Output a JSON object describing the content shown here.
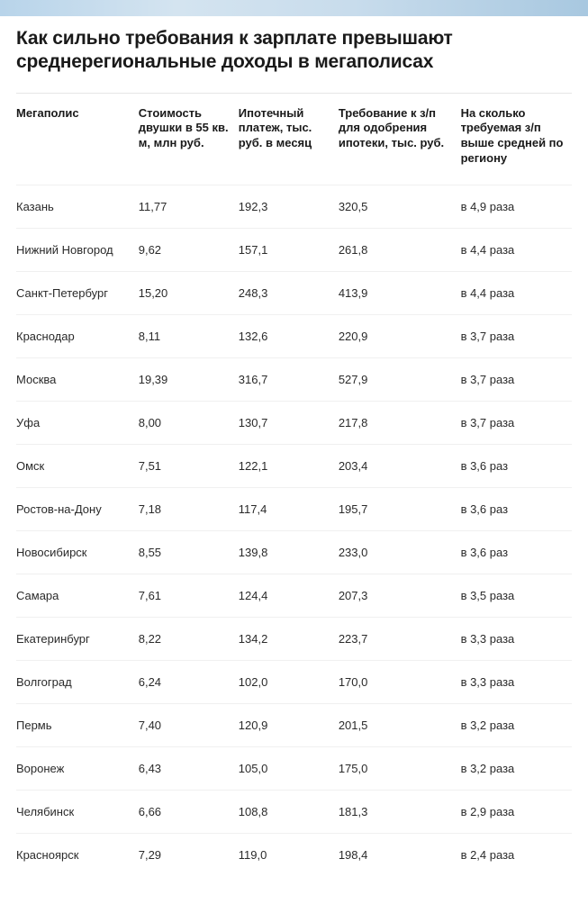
{
  "title": "Как сильно требования к зарплате превышают среднерегиональные доходы в мегаполисах",
  "table": {
    "columns": [
      "Мегаполис",
      "Стоимость двушки в 55 кв. м, млн руб.",
      "Ипотечный платеж, тыс. руб. в месяц",
      "Требование к з/п для одобрения ипотеки, тыс. руб.",
      "На сколько требуемая з/п выше средней по региону"
    ],
    "rows": [
      {
        "city": "Казань",
        "cost": "11,77",
        "payment": "192,3",
        "req": "320,5",
        "ratio": "в 4,9 раза"
      },
      {
        "city": "Нижний Новгород",
        "cost": "9,62",
        "payment": "157,1",
        "req": "261,8",
        "ratio": "в 4,4 раза"
      },
      {
        "city": "Санкт-Петербург",
        "cost": "15,20",
        "payment": "248,3",
        "req": "413,9",
        "ratio": "в 4,4 раза"
      },
      {
        "city": "Краснодар",
        "cost": "8,11",
        "payment": "132,6",
        "req": "220,9",
        "ratio": "в 3,7 раза"
      },
      {
        "city": "Москва",
        "cost": "19,39",
        "payment": "316,7",
        "req": "527,9",
        "ratio": "в 3,7 раза"
      },
      {
        "city": "Уфа",
        "cost": "8,00",
        "payment": "130,7",
        "req": "217,8",
        "ratio": "в 3,7 раза"
      },
      {
        "city": "Омск",
        "cost": "7,51",
        "payment": "122,1",
        "req": "203,4",
        "ratio": "в 3,6 раз"
      },
      {
        "city": "Ростов-на-Дону",
        "cost": "7,18",
        "payment": "117,4",
        "req": "195,7",
        "ratio": "в 3,6 раз"
      },
      {
        "city": "Новосибирск",
        "cost": "8,55",
        "payment": "139,8",
        "req": "233,0",
        "ratio": "в 3,6 раз"
      },
      {
        "city": "Самара",
        "cost": "7,61",
        "payment": "124,4",
        "req": "207,3",
        "ratio": "в 3,5 раза"
      },
      {
        "city": "Екатеринбург",
        "cost": "8,22",
        "payment": "134,2",
        "req": "223,7",
        "ratio": "в 3,3 раза"
      },
      {
        "city": "Волгоград",
        "cost": "6,24",
        "payment": "102,0",
        "req": "170,0",
        "ratio": "в 3,3 раза"
      },
      {
        "city": "Пермь",
        "cost": "7,40",
        "payment": "120,9",
        "req": "201,5",
        "ratio": "в 3,2 раза"
      },
      {
        "city": "Воронеж",
        "cost": "6,43",
        "payment": "105,0",
        "req": "175,0",
        "ratio": "в 3,2 раза"
      },
      {
        "city": "Челябинск",
        "cost": "6,66",
        "payment": "108,8",
        "req": "181,3",
        "ratio": "в 2,9 раза"
      },
      {
        "city": "Красноярск",
        "cost": "7,29",
        "payment": "119,0",
        "req": "198,4",
        "ratio": "в 2,4 раза"
      }
    ]
  },
  "style": {
    "title_fontsize": 21,
    "cell_fontsize": 13,
    "header_fontsize": 13,
    "text_color": "#1a1a1a",
    "row_border_color": "#f0f0f0",
    "separator_color": "#e6e6e6",
    "background_color": "#ffffff",
    "banner_gradient": [
      "#b8d4ea",
      "#d4e4f0",
      "#c8dcec",
      "#a8c8e0"
    ]
  }
}
